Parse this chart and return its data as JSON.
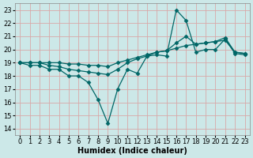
{
  "title": "",
  "xlabel": "Humidex (Indice chaleur)",
  "ylabel": "",
  "bg_color": "#cce8e8",
  "grid_color": "#d8a8a8",
  "line_color": "#006666",
  "xlim": [
    -0.5,
    23.5
  ],
  "ylim": [
    13.5,
    23.5
  ],
  "xticks": [
    0,
    1,
    2,
    3,
    4,
    5,
    6,
    7,
    8,
    9,
    10,
    11,
    12,
    13,
    14,
    15,
    16,
    17,
    18,
    19,
    20,
    21,
    22,
    23
  ],
  "yticks": [
    14,
    15,
    16,
    17,
    18,
    19,
    20,
    21,
    22,
    23
  ],
  "series": {
    "line1_volatile": {
      "x": [
        0,
        1,
        2,
        3,
        4,
        5,
        6,
        7,
        8,
        9,
        10,
        11,
        12,
        13,
        14,
        15,
        16,
        17,
        18,
        19,
        20,
        21,
        22,
        23
      ],
      "y": [
        19.0,
        18.8,
        18.8,
        18.5,
        18.5,
        18.0,
        18.0,
        17.5,
        16.2,
        14.4,
        17.0,
        18.5,
        18.2,
        19.5,
        19.6,
        19.5,
        23.0,
        22.2,
        19.8,
        20.0,
        20.0,
        20.8,
        19.7,
        19.6
      ]
    },
    "line2_mid": {
      "x": [
        0,
        1,
        2,
        3,
        4,
        5,
        6,
        7,
        8,
        9,
        10,
        11,
        12,
        13,
        14,
        15,
        16,
        17,
        18,
        19,
        20,
        21,
        22,
        23
      ],
      "y": [
        19.0,
        19.0,
        19.0,
        18.8,
        18.7,
        18.5,
        18.4,
        18.3,
        18.2,
        18.1,
        18.5,
        19.0,
        19.3,
        19.5,
        19.8,
        19.9,
        20.5,
        21.0,
        20.4,
        20.5,
        20.6,
        20.9,
        19.8,
        19.7
      ]
    },
    "line3_flat": {
      "x": [
        0,
        1,
        2,
        3,
        4,
        5,
        6,
        7,
        8,
        9,
        10,
        11,
        12,
        13,
        14,
        15,
        16,
        17,
        18,
        19,
        20,
        21,
        22,
        23
      ],
      "y": [
        19.0,
        19.0,
        19.0,
        19.0,
        19.0,
        18.9,
        18.9,
        18.8,
        18.8,
        18.7,
        19.0,
        19.2,
        19.4,
        19.6,
        19.8,
        19.9,
        20.1,
        20.3,
        20.4,
        20.5,
        20.6,
        20.7,
        19.8,
        19.7
      ]
    }
  },
  "marker": "D",
  "marker_size": 2.5,
  "line_width": 0.9,
  "font_size": 6,
  "xlabel_fontsize": 7
}
